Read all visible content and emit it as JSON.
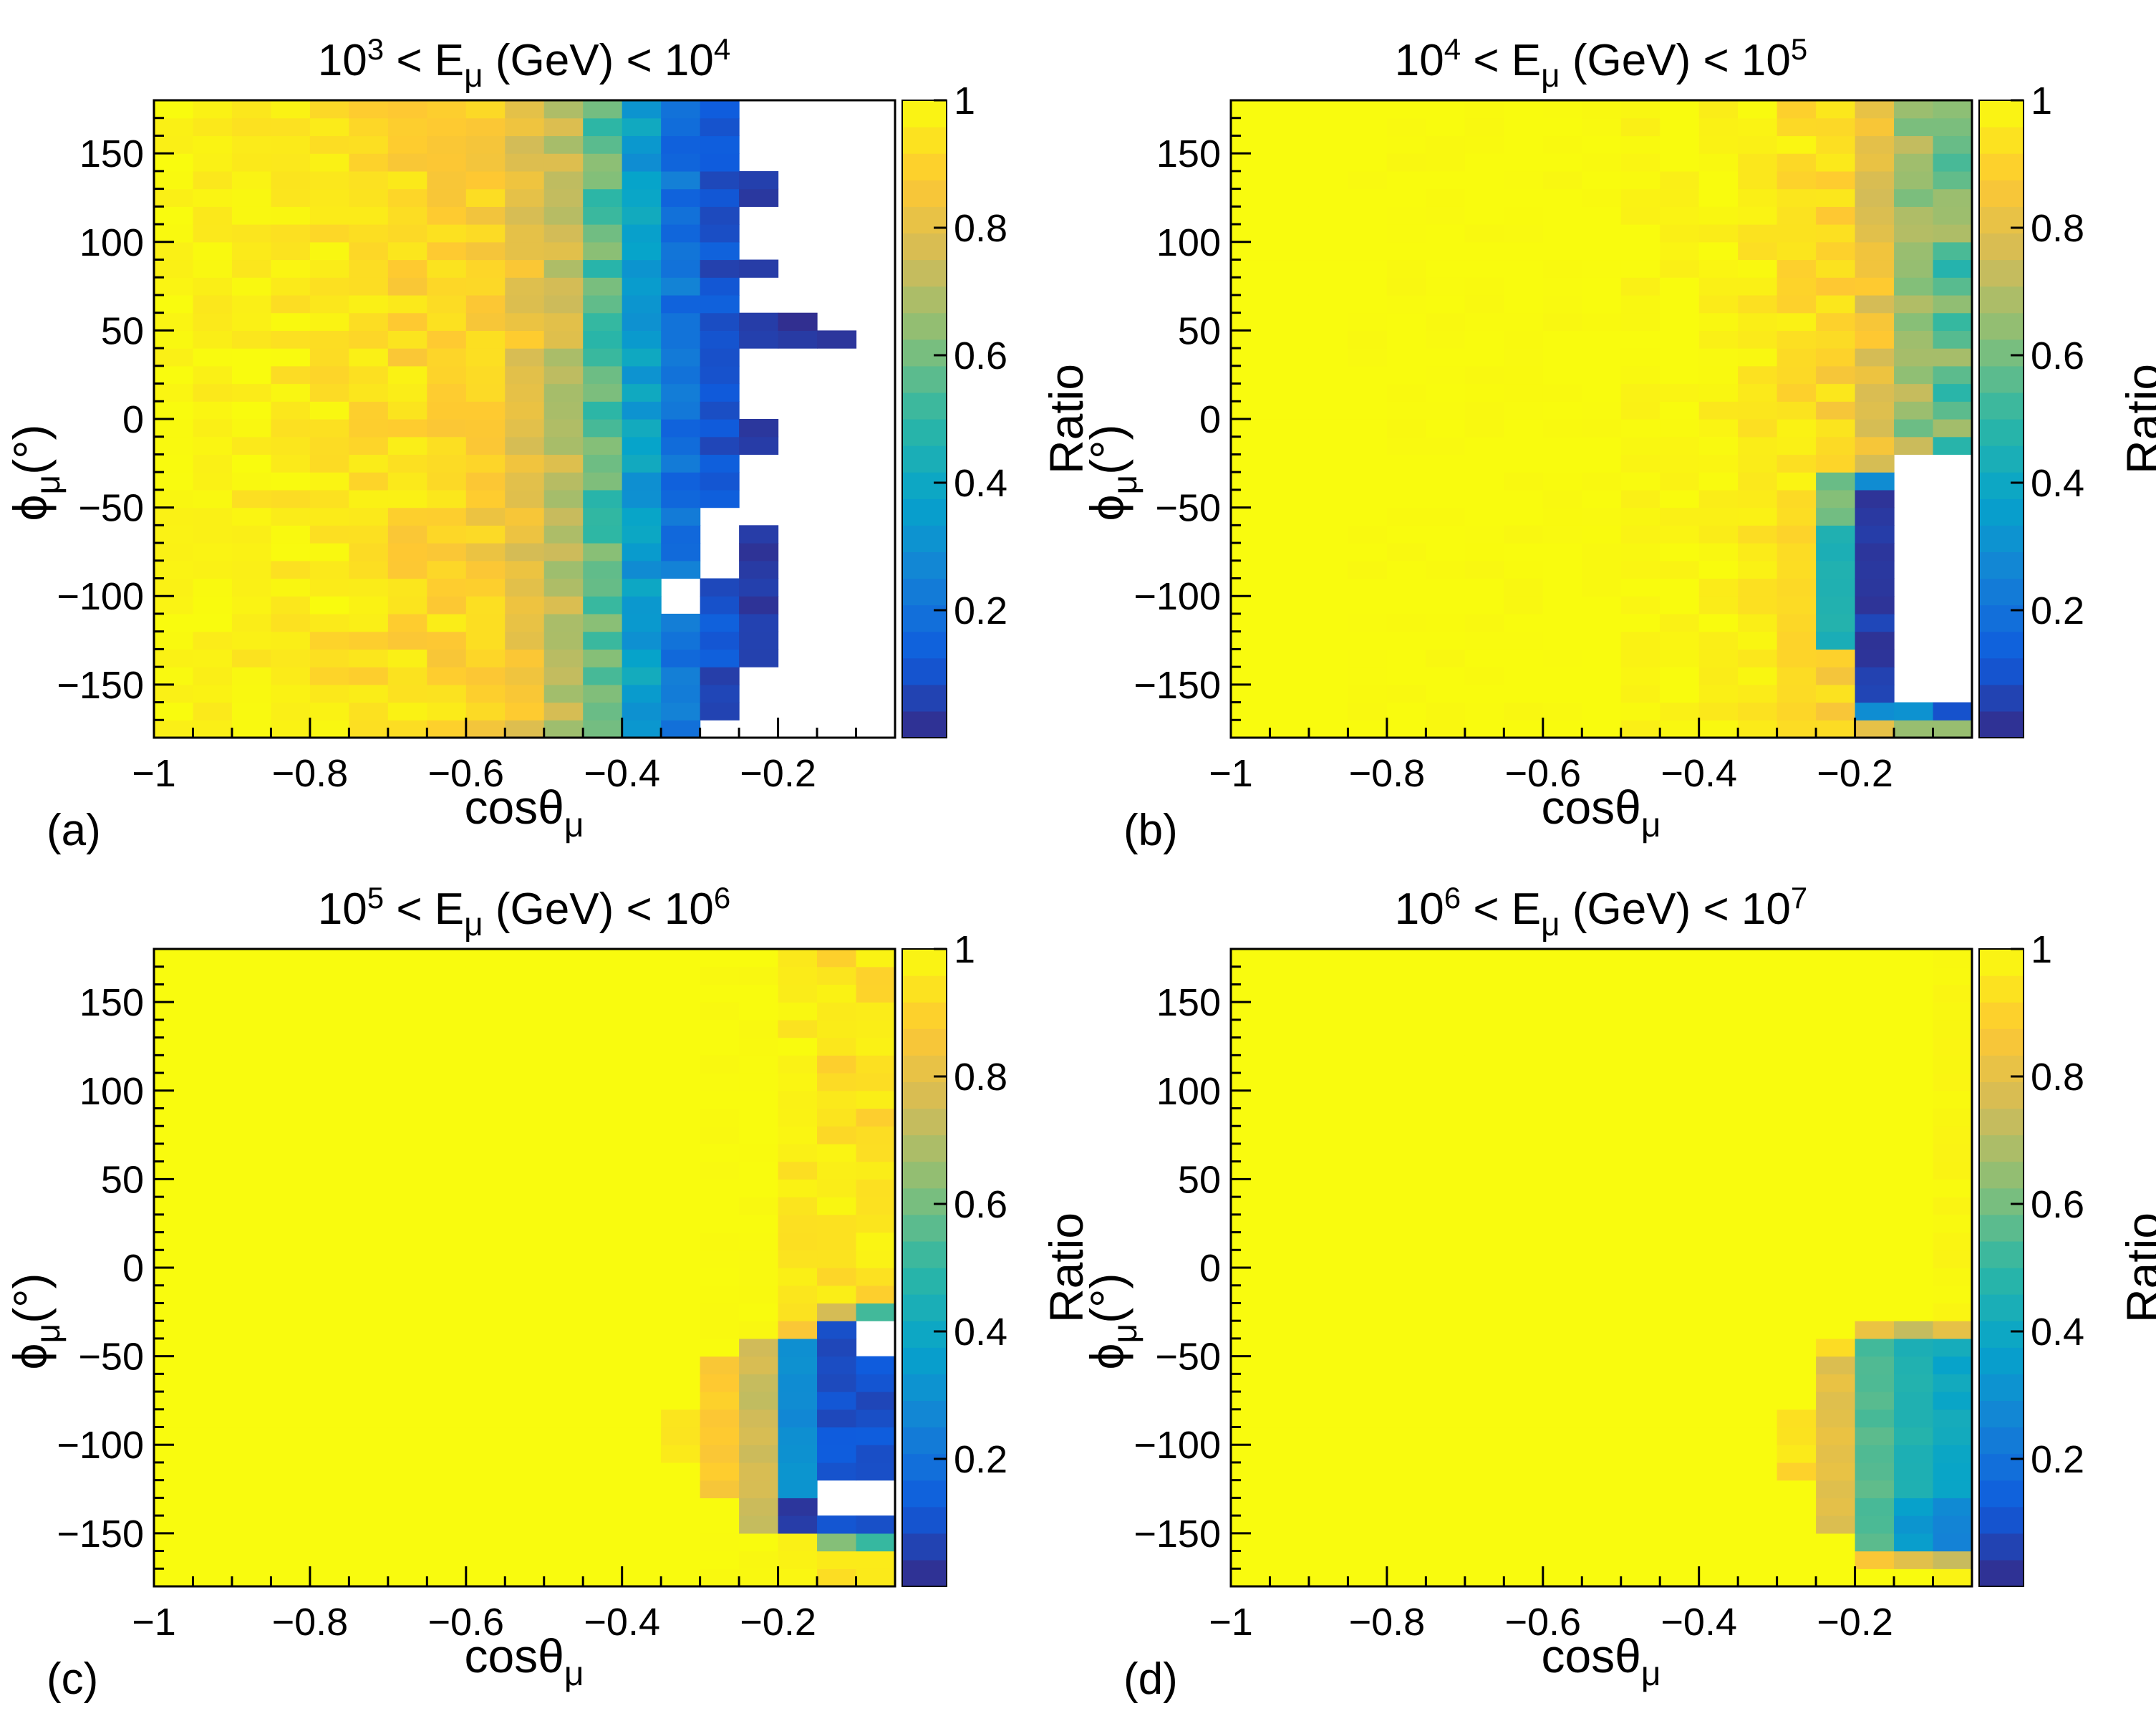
{
  "figure": {
    "type": "heatmap-grid",
    "colorbar_label": "Ratio"
  },
  "colors": {
    "palette_stops": [
      "#352a87",
      "#0f5cdd",
      "#1481d6",
      "#06a4ca",
      "#2eb7a4",
      "#87bf77",
      "#d1bb59",
      "#fec832",
      "#f9fb0e"
    ],
    "missing": "#ffffff",
    "axis": "#000000"
  },
  "chart_data": [
    {
      "type": "heatmap",
      "panel_label": "(a)",
      "title": {
        "base1": "10",
        "exp1": "3",
        "mid": " < E",
        "sub": "μ",
        "tail": " (GeV) < ",
        "base2": "10",
        "exp2": "4"
      },
      "xlabel": {
        "main": "cosθ",
        "sub": "μ"
      },
      "ylabel": {
        "main": "ϕ",
        "sub": "μ",
        "unit": "(°)"
      },
      "x_range": [
        -1,
        -0.05
      ],
      "y_range": [
        -180,
        180
      ],
      "x_bins": 19,
      "y_bins": 36,
      "x_ticks": [
        {
          "v": -1,
          "label": "−1"
        },
        {
          "v": -0.8,
          "label": "−0.8"
        },
        {
          "v": -0.6,
          "label": "−0.6"
        },
        {
          "v": -0.4,
          "label": "−0.4"
        },
        {
          "v": -0.2,
          "label": "−0.2"
        }
      ],
      "y_ticks": [
        {
          "v": 150,
          "label": "150"
        },
        {
          "v": 100,
          "label": "100"
        },
        {
          "v": 50,
          "label": "50"
        },
        {
          "v": 0,
          "label": "0"
        },
        {
          "v": -50,
          "label": "−50"
        },
        {
          "v": -100,
          "label": "−100"
        },
        {
          "v": -150,
          "label": "−150"
        }
      ],
      "z_range": [
        0,
        1
      ],
      "colorbar_ticks": [
        {
          "v": 1,
          "label": "1"
        },
        {
          "v": 0.8,
          "label": "0.8"
        },
        {
          "v": 0.6,
          "label": "0.6"
        },
        {
          "v": 0.4,
          "label": "0.4"
        },
        {
          "v": 0.2,
          "label": "0.2"
        }
      ],
      "colorbar_label": "Ratio",
      "columns": [
        {
          "base": 0.99,
          "amp": 0.02
        },
        {
          "base": 0.98,
          "amp": 0.03
        },
        {
          "base": 0.97,
          "amp": 0.04
        },
        {
          "base": 0.96,
          "amp": 0.04
        },
        {
          "base": 0.95,
          "amp": 0.05
        },
        {
          "base": 0.93,
          "amp": 0.05
        },
        {
          "base": 0.92,
          "amp": 0.06
        },
        {
          "base": 0.91,
          "amp": 0.06
        },
        {
          "base": 0.88,
          "amp": 0.06
        },
        {
          "base": 0.82,
          "amp": 0.07
        },
        {
          "base": 0.73,
          "amp": 0.07
        },
        {
          "base": 0.56,
          "amp": 0.08
        },
        {
          "base": 0.35,
          "amp": 0.07
        },
        {
          "base": 0.2,
          "amp": 0.06
        },
        {
          "base": 0.1,
          "amp": 0.05
        },
        {
          "base": 0.04,
          "amp": 0.03
        },
        {
          "base": 0.03,
          "amp": 0.02
        },
        {
          "base": 0.03,
          "amp": 0.02
        },
        {
          "base": 0.03,
          "amp": 0.02
        }
      ],
      "blank_ranges": [
        {
          "col": 13,
          "from": -110,
          "to": -100
        },
        {
          "col": 14,
          "from": -90,
          "to": -60
        },
        {
          "col": 14,
          "from": -180,
          "to": -180
        },
        {
          "col": 15,
          "from": -180,
          "to": -150
        },
        {
          "col": 15,
          "from": -60,
          "to": -30
        },
        {
          "col": 15,
          "from": 0,
          "to": 30
        },
        {
          "col": 15,
          "from": 60,
          "to": 70
        },
        {
          "col": 15,
          "from": 90,
          "to": 110
        },
        {
          "col": 15,
          "from": 140,
          "to": 170
        },
        {
          "col": 16,
          "from": -180,
          "to": 30
        },
        {
          "col": 16,
          "from": 60,
          "to": 170
        },
        {
          "col": 17,
          "from": -180,
          "to": 30
        },
        {
          "col": 17,
          "from": 50,
          "to": 180
        },
        {
          "col": 18,
          "from": -180,
          "to": 180
        }
      ]
    },
    {
      "type": "heatmap",
      "panel_label": "(b)",
      "title": {
        "base1": "10",
        "exp1": "4",
        "mid": " < E",
        "sub": "μ",
        "tail": " (GeV) < ",
        "base2": "10",
        "exp2": "5"
      },
      "xlabel": {
        "main": "cosθ",
        "sub": "μ"
      },
      "ylabel": {
        "main": "ϕ",
        "sub": "μ",
        "unit": "(°)"
      },
      "x_range": [
        -1,
        -0.05
      ],
      "y_range": [
        -180,
        180
      ],
      "x_bins": 19,
      "y_bins": 36,
      "x_ticks": [
        {
          "v": -1,
          "label": "−1"
        },
        {
          "v": -0.8,
          "label": "−0.8"
        },
        {
          "v": -0.6,
          "label": "−0.6"
        },
        {
          "v": -0.4,
          "label": "−0.4"
        },
        {
          "v": -0.2,
          "label": "−0.2"
        }
      ],
      "y_ticks": [
        {
          "v": 150,
          "label": "150"
        },
        {
          "v": 100,
          "label": "100"
        },
        {
          "v": 50,
          "label": "50"
        },
        {
          "v": 0,
          "label": "0"
        },
        {
          "v": -50,
          "label": "−50"
        },
        {
          "v": -100,
          "label": "−100"
        },
        {
          "v": -150,
          "label": "−150"
        }
      ],
      "z_range": [
        0,
        1
      ],
      "colorbar_ticks": [
        {
          "v": 1,
          "label": "1"
        },
        {
          "v": 0.8,
          "label": "0.8"
        },
        {
          "v": 0.6,
          "label": "0.6"
        },
        {
          "v": 0.4,
          "label": "0.4"
        },
        {
          "v": 0.2,
          "label": "0.2"
        }
      ],
      "colorbar_label": "Ratio",
      "columns": [
        {
          "base": 1.0,
          "amp": 0.0
        },
        {
          "base": 1.0,
          "amp": 0.0
        },
        {
          "base": 1.0,
          "amp": 0.0
        },
        {
          "base": 1.0,
          "amp": 0.01
        },
        {
          "base": 1.0,
          "amp": 0.01
        },
        {
          "base": 1.0,
          "amp": 0.01
        },
        {
          "base": 1.0,
          "amp": 0.01
        },
        {
          "base": 1.0,
          "amp": 0.01
        },
        {
          "base": 1.0,
          "amp": 0.01
        },
        {
          "base": 1.0,
          "amp": 0.01
        },
        {
          "base": 0.99,
          "amp": 0.02
        },
        {
          "base": 0.99,
          "amp": 0.02
        },
        {
          "base": 0.98,
          "amp": 0.03
        },
        {
          "base": 0.96,
          "amp": 0.04
        },
        {
          "base": 0.94,
          "amp": 0.05
        },
        {
          "base": 0.9,
          "amp": 0.06
        },
        {
          "base": 0.82,
          "amp": 0.07
        },
        {
          "base": 0.66,
          "amp": 0.09
        },
        {
          "base": 0.58,
          "amp": 0.12
        }
      ],
      "overrides": [
        {
          "col": 14,
          "from": -130,
          "to": -60,
          "value": 0.9
        },
        {
          "col": 15,
          "from": -130,
          "to": -60,
          "value": 0.45
        },
        {
          "col": 15,
          "from": -60,
          "to": -30,
          "value": 0.6
        },
        {
          "col": 16,
          "from": -160,
          "to": -40,
          "value": 0.05
        },
        {
          "col": 16,
          "from": -40,
          "to": -30,
          "value": 0.3
        },
        {
          "col": 16,
          "from": -170,
          "to": -160,
          "value": 0.3
        },
        {
          "col": 17,
          "from": -30,
          "to": -20,
          "value": 0.4
        },
        {
          "col": 18,
          "from": -30,
          "to": -20,
          "value": 0.15
        },
        {
          "col": 17,
          "from": -170,
          "to": -160,
          "value": 0.3
        },
        {
          "col": 18,
          "from": -170,
          "to": -160,
          "value": 0.1
        }
      ],
      "blank_ranges": [
        {
          "col": 17,
          "from": -160,
          "to": -30
        },
        {
          "col": 18,
          "from": -160,
          "to": -30
        }
      ]
    },
    {
      "type": "heatmap",
      "panel_label": "(c)",
      "title": {
        "base1": "10",
        "exp1": "5",
        "mid": " < E",
        "sub": "μ",
        "tail": " (GeV) < ",
        "base2": "10",
        "exp2": "6"
      },
      "xlabel": {
        "main": "cosθ",
        "sub": "μ"
      },
      "ylabel": {
        "main": "ϕ",
        "sub": "μ",
        "unit": "(°)"
      },
      "x_range": [
        -1,
        -0.05
      ],
      "y_range": [
        -180,
        180
      ],
      "x_bins": 19,
      "y_bins": 36,
      "x_ticks": [
        {
          "v": -1,
          "label": "−1"
        },
        {
          "v": -0.8,
          "label": "−0.8"
        },
        {
          "v": -0.6,
          "label": "−0.6"
        },
        {
          "v": -0.4,
          "label": "−0.4"
        },
        {
          "v": -0.2,
          "label": "−0.2"
        }
      ],
      "y_ticks": [
        {
          "v": 150,
          "label": "150"
        },
        {
          "v": 100,
          "label": "100"
        },
        {
          "v": 50,
          "label": "50"
        },
        {
          "v": 0,
          "label": "0"
        },
        {
          "v": -50,
          "label": "−50"
        },
        {
          "v": -100,
          "label": "−100"
        },
        {
          "v": -150,
          "label": "−150"
        }
      ],
      "z_range": [
        0,
        1
      ],
      "colorbar_ticks": [
        {
          "v": 1,
          "label": "1"
        },
        {
          "v": 0.8,
          "label": "0.8"
        },
        {
          "v": 0.6,
          "label": "0.6"
        },
        {
          "v": 0.4,
          "label": "0.4"
        },
        {
          "v": 0.2,
          "label": "0.2"
        }
      ],
      "colorbar_label": "Ratio",
      "columns": [
        {
          "base": 1.0,
          "amp": 0.0
        },
        {
          "base": 1.0,
          "amp": 0.0
        },
        {
          "base": 1.0,
          "amp": 0.0
        },
        {
          "base": 1.0,
          "amp": 0.0
        },
        {
          "base": 1.0,
          "amp": 0.0
        },
        {
          "base": 1.0,
          "amp": 0.0
        },
        {
          "base": 1.0,
          "amp": 0.0
        },
        {
          "base": 1.0,
          "amp": 0.0
        },
        {
          "base": 1.0,
          "amp": 0.0
        },
        {
          "base": 1.0,
          "amp": 0.0
        },
        {
          "base": 1.0,
          "amp": 0.0
        },
        {
          "base": 1.0,
          "amp": 0.0
        },
        {
          "base": 1.0,
          "amp": 0.0
        },
        {
          "base": 1.0,
          "amp": 0.0
        },
        {
          "base": 1.0,
          "amp": 0.01
        },
        {
          "base": 1.0,
          "amp": 0.01
        },
        {
          "base": 0.96,
          "amp": 0.04
        },
        {
          "base": 0.94,
          "amp": 0.05
        },
        {
          "base": 0.94,
          "amp": 0.05
        }
      ],
      "overrides": [
        {
          "col": 13,
          "from": -110,
          "to": -80,
          "value": 0.93
        },
        {
          "col": 14,
          "from": -130,
          "to": -50,
          "value": 0.88
        },
        {
          "col": 15,
          "from": -150,
          "to": -40,
          "value": 0.75
        },
        {
          "col": 16,
          "from": -150,
          "to": -130,
          "value": 0.05
        },
        {
          "col": 16,
          "from": -130,
          "to": -40,
          "value": 0.3
        },
        {
          "col": 16,
          "from": -40,
          "to": -30,
          "value": 0.85
        },
        {
          "col": 17,
          "from": -150,
          "to": -30,
          "value": 0.1
        },
        {
          "col": 18,
          "from": -150,
          "to": -30,
          "value": 0.1
        },
        {
          "col": 17,
          "from": -30,
          "to": -20,
          "value": 0.75
        },
        {
          "col": 18,
          "from": -30,
          "to": -20,
          "value": 0.5
        },
        {
          "col": 18,
          "from": -160,
          "to": -150,
          "value": 0.5
        },
        {
          "col": 17,
          "from": -160,
          "to": -150,
          "value": 0.6
        }
      ],
      "blank_ranges": [
        {
          "col": 18,
          "from": -50,
          "to": -40
        },
        {
          "col": 17,
          "from": -140,
          "to": -130
        },
        {
          "col": 18,
          "from": -140,
          "to": -130
        }
      ]
    },
    {
      "type": "heatmap",
      "panel_label": "(d)",
      "title": {
        "base1": "10",
        "exp1": "6",
        "mid": " < E",
        "sub": "μ",
        "tail": " (GeV) < ",
        "base2": "10",
        "exp2": "7"
      },
      "xlabel": {
        "main": "cosθ",
        "sub": "μ"
      },
      "ylabel": {
        "main": "ϕ",
        "sub": "μ",
        "unit": "(°)"
      },
      "x_range": [
        -1,
        -0.05
      ],
      "y_range": [
        -180,
        180
      ],
      "x_bins": 19,
      "y_bins": 36,
      "x_ticks": [
        {
          "v": -1,
          "label": "−1"
        },
        {
          "v": -0.8,
          "label": "−0.8"
        },
        {
          "v": -0.6,
          "label": "−0.6"
        },
        {
          "v": -0.4,
          "label": "−0.4"
        },
        {
          "v": -0.2,
          "label": "−0.2"
        }
      ],
      "y_ticks": [
        {
          "v": 150,
          "label": "150"
        },
        {
          "v": 100,
          "label": "100"
        },
        {
          "v": 50,
          "label": "50"
        },
        {
          "v": 0,
          "label": "0"
        },
        {
          "v": -50,
          "label": "−50"
        },
        {
          "v": -100,
          "label": "−100"
        },
        {
          "v": -150,
          "label": "−150"
        }
      ],
      "z_range": [
        0,
        1
      ],
      "colorbar_ticks": [
        {
          "v": 1,
          "label": "1"
        },
        {
          "v": 0.8,
          "label": "0.8"
        },
        {
          "v": 0.6,
          "label": "0.6"
        },
        {
          "v": 0.4,
          "label": "0.4"
        },
        {
          "v": 0.2,
          "label": "0.2"
        }
      ],
      "colorbar_label": "Ratio",
      "columns": [
        {
          "base": 1.0,
          "amp": 0.0
        },
        {
          "base": 1.0,
          "amp": 0.0
        },
        {
          "base": 1.0,
          "amp": 0.0
        },
        {
          "base": 1.0,
          "amp": 0.0
        },
        {
          "base": 1.0,
          "amp": 0.0
        },
        {
          "base": 1.0,
          "amp": 0.0
        },
        {
          "base": 1.0,
          "amp": 0.0
        },
        {
          "base": 1.0,
          "amp": 0.0
        },
        {
          "base": 1.0,
          "amp": 0.0
        },
        {
          "base": 1.0,
          "amp": 0.0
        },
        {
          "base": 1.0,
          "amp": 0.0
        },
        {
          "base": 1.0,
          "amp": 0.0
        },
        {
          "base": 1.0,
          "amp": 0.0
        },
        {
          "base": 1.0,
          "amp": 0.0
        },
        {
          "base": 1.0,
          "amp": 0.0
        },
        {
          "base": 1.0,
          "amp": 0.0
        },
        {
          "base": 1.0,
          "amp": 0.0
        },
        {
          "base": 1.0,
          "amp": 0.0
        },
        {
          "base": 0.99,
          "amp": 0.01
        }
      ],
      "overrides": [
        {
          "col": 14,
          "from": -120,
          "to": -80,
          "value": 0.93
        },
        {
          "col": 15,
          "from": -150,
          "to": -50,
          "value": 0.8
        },
        {
          "col": 15,
          "from": -50,
          "to": -40,
          "value": 0.93
        },
        {
          "col": 16,
          "from": -160,
          "to": -40,
          "value": 0.55
        },
        {
          "col": 16,
          "from": -40,
          "to": -30,
          "value": 0.85
        },
        {
          "col": 17,
          "from": -160,
          "to": -130,
          "value": 0.35
        },
        {
          "col": 17,
          "from": -130,
          "to": -40,
          "value": 0.45
        },
        {
          "col": 17,
          "from": -40,
          "to": -30,
          "value": 0.75
        },
        {
          "col": 18,
          "from": -160,
          "to": -130,
          "value": 0.28
        },
        {
          "col": 18,
          "from": -130,
          "to": -40,
          "value": 0.4
        },
        {
          "col": 18,
          "from": -40,
          "to": -30,
          "value": 0.8
        },
        {
          "col": 16,
          "from": -170,
          "to": -160,
          "value": 0.85
        },
        {
          "col": 17,
          "from": -170,
          "to": -160,
          "value": 0.8
        },
        {
          "col": 18,
          "from": -170,
          "to": -160,
          "value": 0.75
        }
      ]
    }
  ]
}
